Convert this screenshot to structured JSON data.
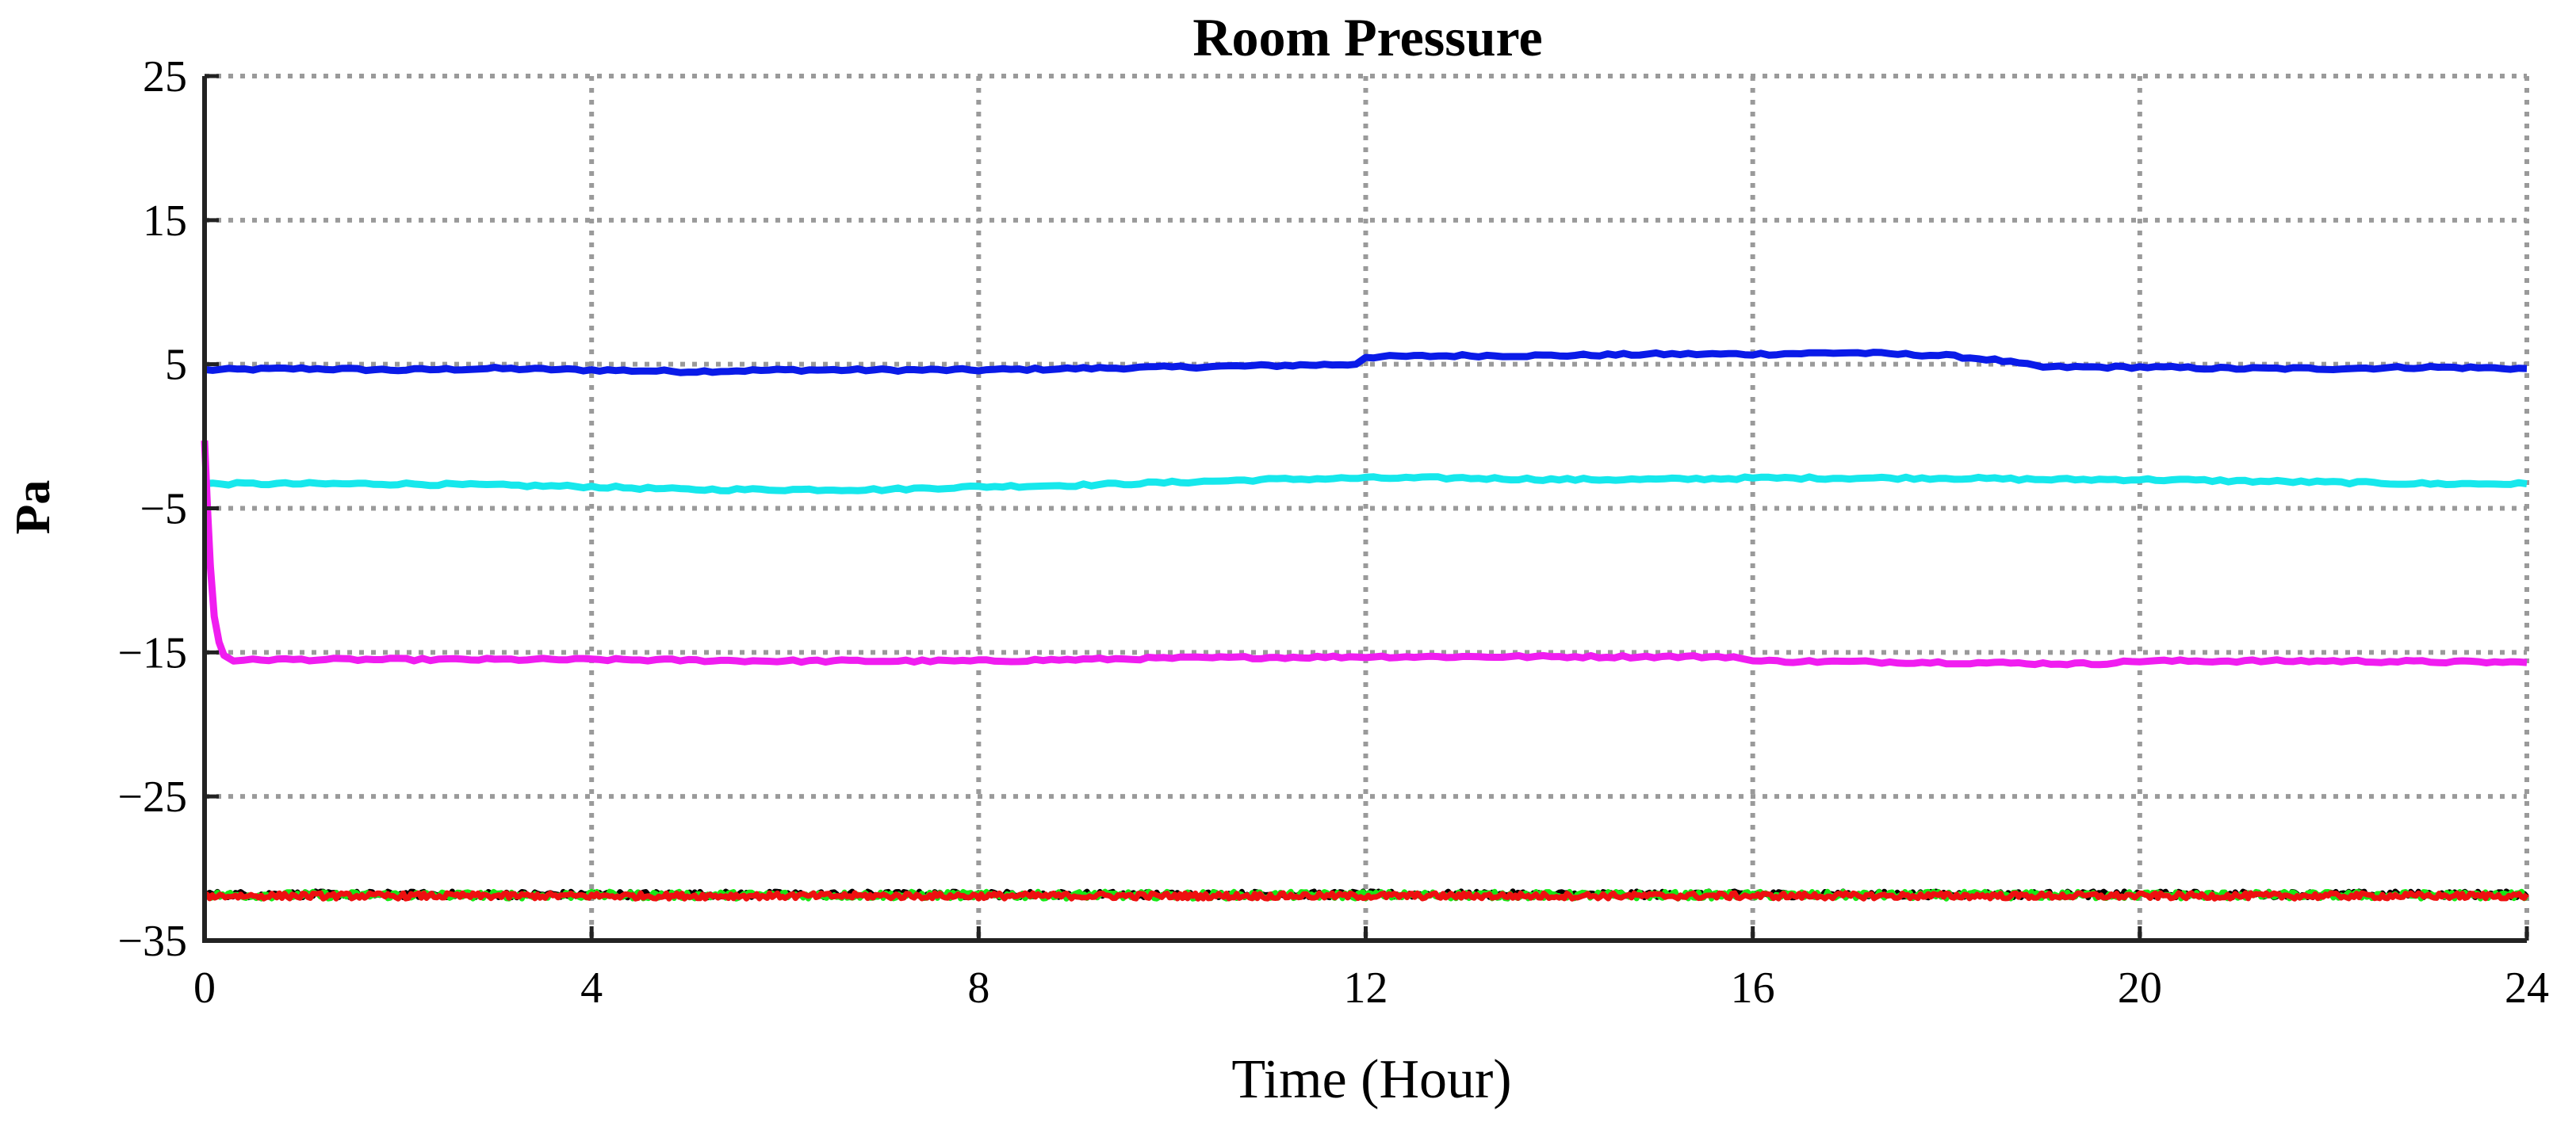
{
  "chart_data": {
    "type": "line",
    "title": "Room Pressure",
    "xlabel": "Time (Hour)",
    "ylabel": "Pa",
    "xlim": [
      0,
      24
    ],
    "ylim": [
      -35,
      25
    ],
    "x_ticks": [
      0,
      4,
      8,
      12,
      16,
      20,
      24
    ],
    "x_tick_labels": [
      "0",
      "4",
      "8",
      "12",
      "16",
      "20",
      "24"
    ],
    "y_ticks": [
      25,
      15,
      5,
      -5,
      -15,
      -25,
      -35
    ],
    "y_tick_labels": [
      "25",
      "15",
      "5",
      "−5",
      "−15",
      "−25",
      "−35"
    ],
    "grid": true,
    "grid_style": "dotted",
    "legend": "none",
    "series": [
      {
        "color": "#0a1be8",
        "x": [
          0,
          1,
          2,
          3,
          4,
          5,
          6,
          7,
          8,
          9,
          10,
          11,
          11.9,
          12,
          13,
          14,
          15,
          16,
          17,
          17.5,
          18,
          18.5,
          19,
          20,
          21,
          22,
          23,
          24
        ],
        "values": [
          4.6,
          4.7,
          4.6,
          4.7,
          4.6,
          4.5,
          4.6,
          4.6,
          4.6,
          4.7,
          4.8,
          4.9,
          5.0,
          5.5,
          5.6,
          5.6,
          5.7,
          5.7,
          5.8,
          5.7,
          5.6,
          5.3,
          4.8,
          4.8,
          4.7,
          4.7,
          4.8,
          4.7
        ]
      },
      {
        "color": "#16e8ec",
        "x": [
          0,
          1,
          2,
          3,
          4,
          5,
          6,
          7,
          8,
          9,
          10,
          11,
          12,
          13,
          14,
          15,
          16,
          17,
          18,
          19,
          20,
          21,
          22,
          23,
          24
        ],
        "values": [
          -3.3,
          -3.3,
          -3.3,
          -3.4,
          -3.5,
          -3.7,
          -3.7,
          -3.7,
          -3.5,
          -3.4,
          -3.2,
          -3.0,
          -2.9,
          -2.9,
          -3.0,
          -3.0,
          -2.9,
          -2.9,
          -2.9,
          -3.0,
          -3.0,
          -3.1,
          -3.2,
          -3.3,
          -3.3
        ]
      },
      {
        "color": "#f01df0",
        "x": [
          0,
          0.03,
          0.06,
          0.1,
          0.15,
          0.2,
          0.3,
          0.5,
          1,
          2,
          4,
          6,
          8,
          10,
          12,
          14,
          15.8,
          16,
          18,
          19.5,
          20,
          22,
          24
        ],
        "values": [
          -0.3,
          -5,
          -9,
          -12.5,
          -14.3,
          -15.2,
          -15.6,
          -15.5,
          -15.5,
          -15.5,
          -15.5,
          -15.6,
          -15.6,
          -15.4,
          -15.3,
          -15.3,
          -15.3,
          -15.6,
          -15.7,
          -15.8,
          -15.6,
          -15.6,
          -15.7
        ]
      },
      {
        "color": "#000000",
        "x": [
          0,
          24
        ],
        "values": [
          -31.8,
          -31.8
        ],
        "noise": 0.22
      },
      {
        "color": "#16e816",
        "x": [
          0,
          24
        ],
        "values": [
          -31.85,
          -31.85
        ],
        "noise": 0.25
      },
      {
        "color": "#ee1010",
        "x": [
          0,
          24
        ],
        "values": [
          -31.9,
          -31.9
        ],
        "noise": 0.2
      }
    ]
  }
}
